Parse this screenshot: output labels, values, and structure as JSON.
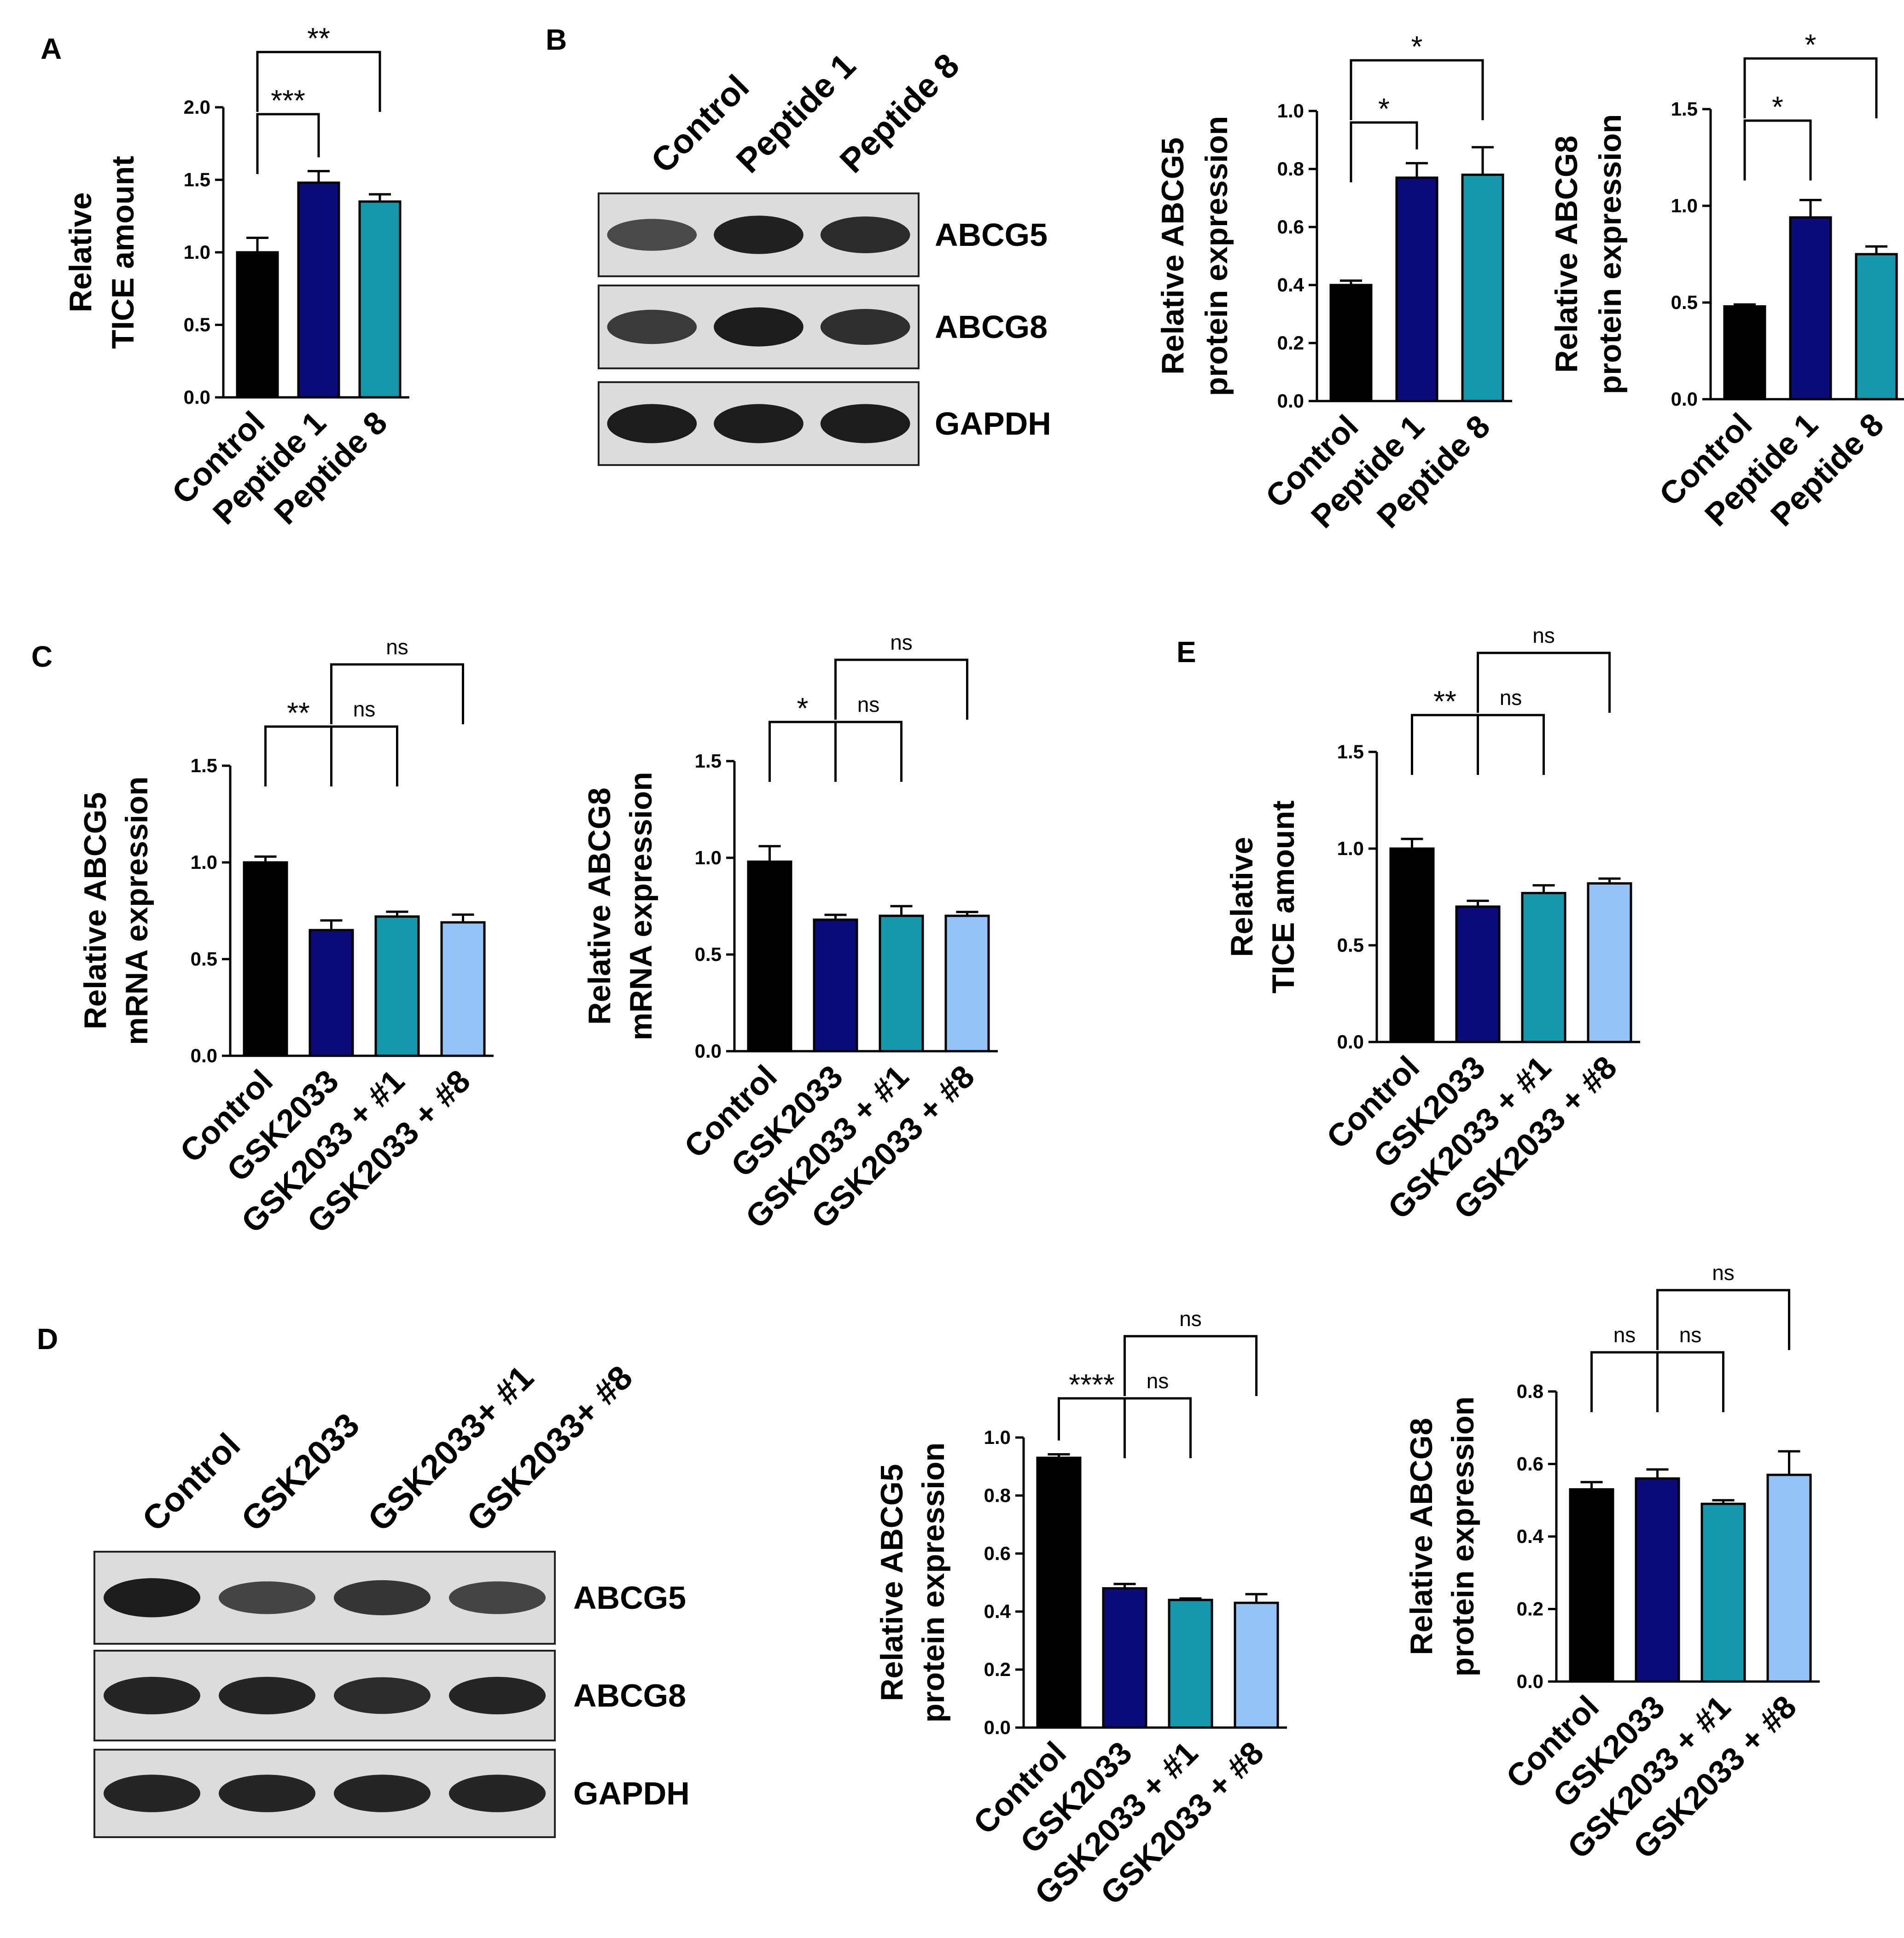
{
  "colors": {
    "Control": "#000000",
    "GSK2033": "#0a0a78",
    "Peptide 1": "#0a0a78",
    "Peptide 8": "#1698ac",
    "GSK2033 + #1": "#1698ac",
    "GSK2033 + #8": "#94c3f7"
  },
  "panel_labels": [
    "A",
    "B",
    "C",
    "D",
    "E"
  ],
  "blots": [
    {
      "id": "blot-b",
      "lanes": [
        "Control",
        "Peptide 1",
        "Peptide 8"
      ],
      "rows": [
        {
          "label": "ABCG5",
          "intensities": [
            0.55,
            0.95,
            0.85
          ]
        },
        {
          "label": "ABCG8",
          "intensities": [
            0.7,
            1.0,
            0.8
          ]
        },
        {
          "label": "GAPDH",
          "intensities": [
            1.0,
            1.0,
            1.0
          ]
        }
      ]
    },
    {
      "id": "blot-d",
      "lanes": [
        "Control",
        "GSK2033",
        "GSK2033+ #1",
        "GSK2033+ #8"
      ],
      "rows": [
        {
          "label": "ABCG5",
          "intensities": [
            1.0,
            0.6,
            0.75,
            0.6
          ]
        },
        {
          "label": "ABCG8",
          "intensities": [
            0.9,
            0.9,
            0.85,
            0.9
          ]
        },
        {
          "label": "GAPDH",
          "intensities": [
            0.9,
            0.9,
            0.9,
            0.9
          ]
        }
      ]
    }
  ],
  "chart_data": [
    {
      "id": "A",
      "type": "bar",
      "categories": [
        "Control",
        "Peptide 1",
        "Peptide 8"
      ],
      "values": [
        1.0,
        1.48,
        1.35
      ],
      "errors": [
        0.1,
        0.08,
        0.05
      ],
      "ylabel": [
        "Relative",
        "TICE amount"
      ],
      "ylim": [
        0,
        2.0
      ],
      "yticks": [
        "0.0",
        "0.5",
        "1.0",
        "1.5",
        "2.0"
      ],
      "significance": [
        {
          "from": 0,
          "to": 1,
          "label": "***"
        },
        {
          "from": 0,
          "to": 2,
          "label": "**"
        }
      ]
    },
    {
      "id": "B1",
      "type": "bar",
      "categories": [
        "Control",
        "Peptide 1",
        "Peptide 8"
      ],
      "values": [
        0.4,
        0.77,
        0.78
      ],
      "errors": [
        0.015,
        0.05,
        0.095
      ],
      "ylabel": [
        "Relative ABCG5",
        "protein expression"
      ],
      "ylim": [
        0,
        1.0
      ],
      "yticks": [
        "0.0",
        "0.2",
        "0.4",
        "0.6",
        "0.8",
        "1.0"
      ],
      "significance": [
        {
          "from": 0,
          "to": 1,
          "label": "*"
        },
        {
          "from": 0,
          "to": 2,
          "label": "*"
        }
      ]
    },
    {
      "id": "B2",
      "type": "bar",
      "categories": [
        "Control",
        "Peptide 1",
        "Peptide 8"
      ],
      "values": [
        0.48,
        0.94,
        0.75
      ],
      "errors": [
        0.01,
        0.09,
        0.04
      ],
      "ylabel": [
        "Relative ABCG8",
        "protein expression"
      ],
      "ylim": [
        0,
        1.5
      ],
      "yticks": [
        "0.0",
        "0.5",
        "1.0",
        "1.5"
      ],
      "significance": [
        {
          "from": 0,
          "to": 1,
          "label": "*"
        },
        {
          "from": 0,
          "to": 2,
          "label": "*"
        }
      ]
    },
    {
      "id": "C1",
      "type": "bar",
      "categories": [
        "Control",
        "GSK2033",
        "GSK2033 + #1",
        "GSK2033 + #8"
      ],
      "values": [
        1.0,
        0.65,
        0.72,
        0.69
      ],
      "errors": [
        0.03,
        0.05,
        0.025,
        0.04
      ],
      "ylabel": [
        "Relative ABCG5",
        "mRNA expression"
      ],
      "ylim": [
        0,
        1.5
      ],
      "yticks": [
        "0.0",
        "0.5",
        "1.0",
        "1.5"
      ],
      "significance": [
        {
          "from": 0,
          "to": 1,
          "label": "**"
        },
        {
          "from": 1,
          "to": 2,
          "label": "ns"
        },
        {
          "from": 1,
          "to": 3,
          "label": "ns"
        }
      ]
    },
    {
      "id": "C2",
      "type": "bar",
      "categories": [
        "Control",
        "GSK2033",
        "GSK2033 + #1",
        "GSK2033 + #8"
      ],
      "values": [
        0.98,
        0.68,
        0.7,
        0.7
      ],
      "errors": [
        0.08,
        0.025,
        0.05,
        0.02
      ],
      "ylabel": [
        "Relative ABCG8",
        "mRNA expression"
      ],
      "ylim": [
        0,
        1.5
      ],
      "yticks": [
        "0.0",
        "0.5",
        "1.0",
        "1.5"
      ],
      "significance": [
        {
          "from": 0,
          "to": 1,
          "label": "*"
        },
        {
          "from": 1,
          "to": 2,
          "label": "ns"
        },
        {
          "from": 1,
          "to": 3,
          "label": "ns"
        }
      ]
    },
    {
      "id": "E",
      "type": "bar",
      "categories": [
        "Control",
        "GSK2033",
        "GSK2033 + #1",
        "GSK2033 + #8"
      ],
      "values": [
        1.0,
        0.7,
        0.77,
        0.82
      ],
      "errors": [
        0.05,
        0.03,
        0.04,
        0.025
      ],
      "ylabel": [
        "Relative",
        "TICE amount"
      ],
      "ylim": [
        0,
        1.5
      ],
      "yticks": [
        "0.0",
        "0.5",
        "1.0",
        "1.5"
      ],
      "significance": [
        {
          "from": 0,
          "to": 1,
          "label": "**"
        },
        {
          "from": 1,
          "to": 2,
          "label": "ns"
        },
        {
          "from": 1,
          "to": 3,
          "label": "ns"
        }
      ]
    },
    {
      "id": "D1",
      "type": "bar",
      "categories": [
        "Control",
        "GSK2033",
        "GSK2033 + #1",
        "GSK2033 + #8"
      ],
      "values": [
        0.93,
        0.48,
        0.44,
        0.43
      ],
      "errors": [
        0.012,
        0.015,
        0.005,
        0.03
      ],
      "ylabel": [
        "Relative ABCG5",
        "protein expression"
      ],
      "ylim": [
        0,
        1.0
      ],
      "yticks": [
        "0.0",
        "0.2",
        "0.4",
        "0.6",
        "0.8",
        "1.0"
      ],
      "significance": [
        {
          "from": 0,
          "to": 1,
          "label": "****"
        },
        {
          "from": 1,
          "to": 2,
          "label": "ns"
        },
        {
          "from": 1,
          "to": 3,
          "label": "ns"
        }
      ]
    },
    {
      "id": "D2",
      "type": "bar",
      "categories": [
        "Control",
        "GSK2033",
        "GSK2033 + #1",
        "GSK2033 + #8"
      ],
      "values": [
        0.53,
        0.56,
        0.49,
        0.57
      ],
      "errors": [
        0.02,
        0.025,
        0.01,
        0.065
      ],
      "ylabel": [
        "Relative ABCG8",
        "protein expression"
      ],
      "ylim": [
        0,
        0.8
      ],
      "yticks": [
        "0.0",
        "0.2",
        "0.4",
        "0.6",
        "0.8"
      ],
      "significance": [
        {
          "from": 0,
          "to": 1,
          "label": "ns"
        },
        {
          "from": 1,
          "to": 2,
          "label": "ns"
        },
        {
          "from": 1,
          "to": 3,
          "label": "ns"
        }
      ]
    }
  ]
}
